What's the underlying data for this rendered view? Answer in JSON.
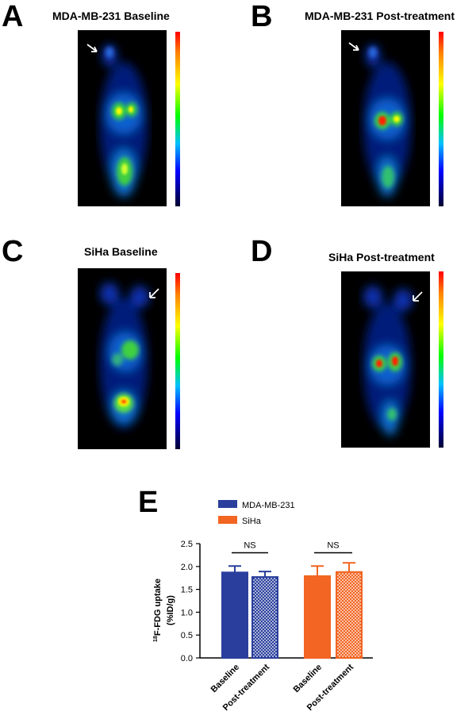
{
  "panels": [
    {
      "letter": "A",
      "title": "MDA-MB-231 Baseline"
    },
    {
      "letter": "B",
      "title": "MDA-MB-231 Post-treatment"
    },
    {
      "letter": "C",
      "title": "SiHa Baseline"
    },
    {
      "letter": "D",
      "title": "SiHa Post-treatment"
    }
  ],
  "chart_letter": "E",
  "colors": {
    "mda": "#2a3f9d",
    "siha": "#f26522"
  },
  "chart_data": {
    "type": "bar",
    "categories": [
      "Baseline",
      "Post-treatment",
      "Baseline",
      "Post-treatment"
    ],
    "series": [
      {
        "name": "MDA-MB-231",
        "values": [
          1.87,
          1.77,
          null,
          null
        ],
        "errors": [
          0.14,
          0.12,
          null,
          null
        ]
      },
      {
        "name": "SiHa",
        "values": [
          null,
          null,
          1.79,
          1.88
        ],
        "errors": [
          null,
          null,
          0.22,
          0.2
        ]
      }
    ],
    "ylabel_sup": "18",
    "ylabel_main": "F-FDG uptake",
    "ylabel_unit": "(%ID/g)",
    "yticks": [
      "0.0",
      "0.5",
      "1.0",
      "1.5",
      "2.0",
      "2.5"
    ],
    "ylim": [
      0,
      2.5
    ],
    "annotations": [
      "NS",
      "NS"
    ],
    "legend_position": "top"
  }
}
